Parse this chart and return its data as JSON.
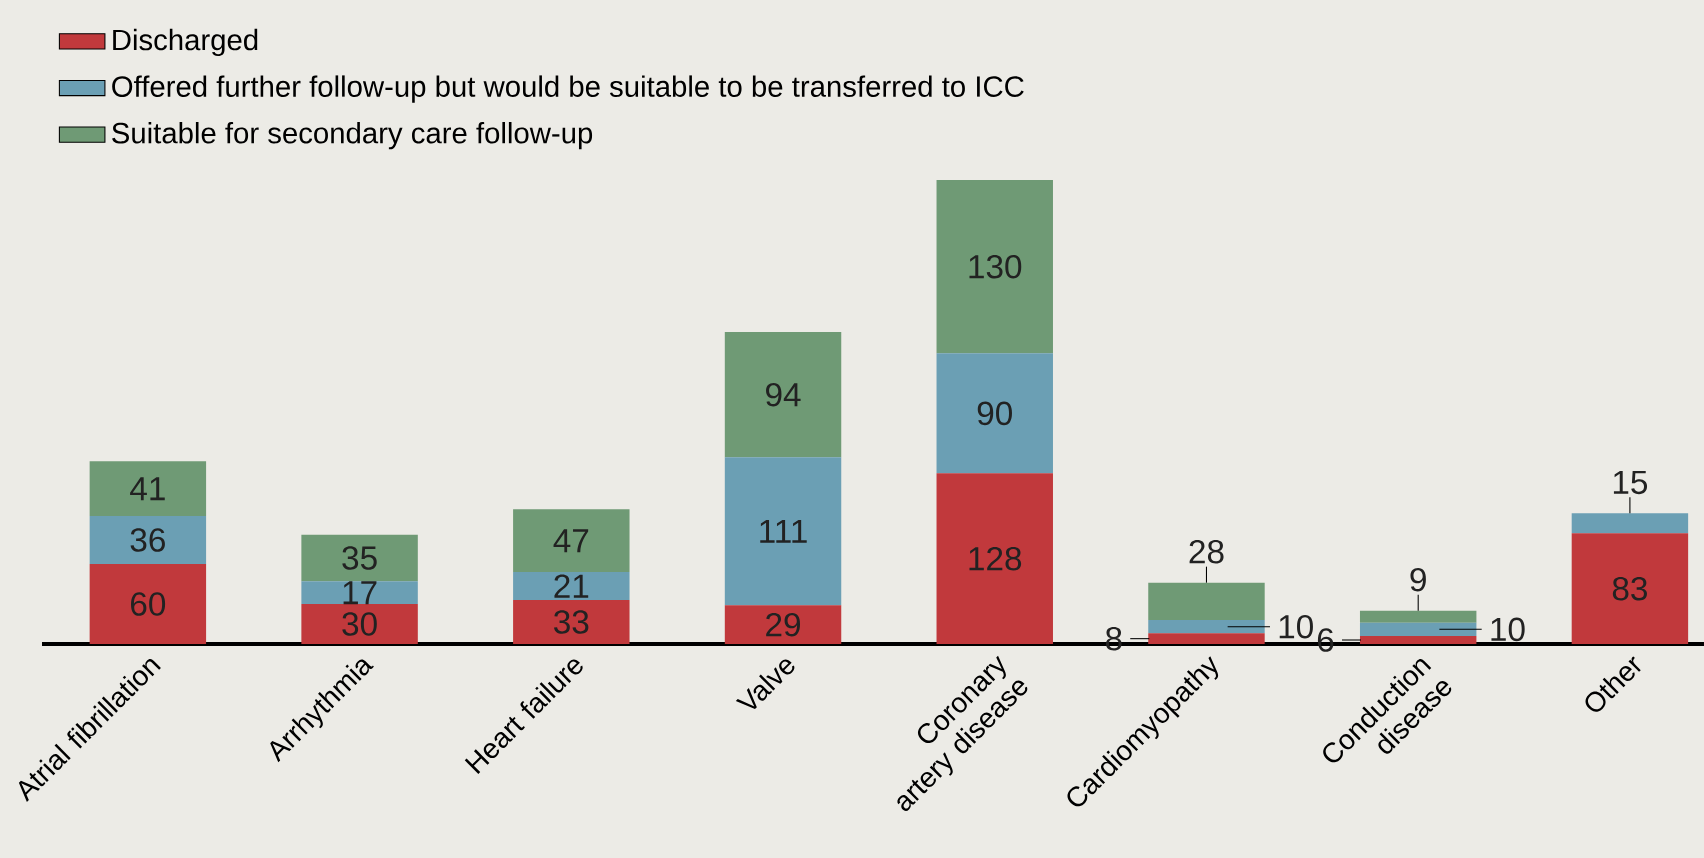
{
  "chart_data": {
    "type": "bar",
    "stacked": true,
    "legend": "top left",
    "categories": [
      "Atrial fibrillation",
      "Arrhythmia",
      "Heart failure",
      "Valve",
      "Coronary artery disease",
      "Cardiomyopathy",
      "Conduction disease",
      "Other"
    ],
    "series": [
      {
        "name": "Discharged",
        "color": "#c1393c",
        "values": [
          60,
          30,
          33,
          29,
          128,
          8,
          6,
          83
        ],
        "value_labels": [
          "60",
          "30",
          "33",
          "29",
          "128",
          "8",
          "6",
          "83"
        ]
      },
      {
        "name": "Offered further follow-up but would be suitable to be transferred to ICC",
        "color": "#6b9fb4",
        "values": [
          36,
          17,
          21,
          111,
          90,
          10,
          10,
          15
        ],
        "value_labels": [
          "36",
          "17",
          "21",
          "111",
          "90",
          "10",
          "10",
          "15"
        ]
      },
      {
        "name": "Suitable for secondary care follow-up",
        "color": "#6f9a75",
        "values": [
          41,
          35,
          47,
          94,
          130,
          28,
          9,
          null
        ],
        "value_labels": [
          "41",
          "35",
          "47",
          "94",
          "130",
          "28",
          "9",
          null
        ]
      }
    ]
  }
}
